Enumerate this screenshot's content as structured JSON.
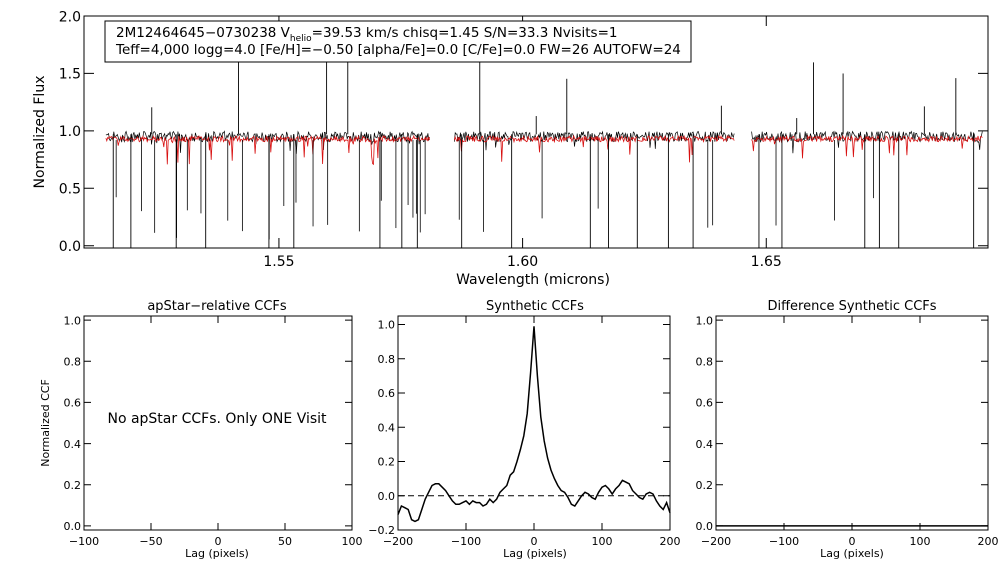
{
  "chart_data": [
    {
      "type": "line",
      "id": "spectrum",
      "ylabel": "Normalized Flux",
      "xlabel": "Wavelength (microns)",
      "xlim": [
        1.51,
        1.6955
      ],
      "ylim": [
        -0.02,
        2.0
      ],
      "x_ticks": [
        1.55,
        1.6,
        1.65
      ],
      "x_tick_labels": [
        "1.55",
        "1.60",
        "1.65"
      ],
      "y_ticks": [
        0.0,
        0.5,
        1.0,
        1.5,
        2.0
      ],
      "y_tick_labels": [
        "0.0",
        "0.5",
        "1.0",
        "1.5",
        "2.0"
      ],
      "info_line1": "2M12464645−0730238  V",
      "info_helio_sub": "helio",
      "info_line1_rest": "=39.53 km/s  chisq=1.45  S/N=33.3  Nvisits=1",
      "info_line2": "Teff=4,000 logg=4.0 [Fe/H]=−0.50 [alpha/Fe]=0.0 [C/Fe]=0.0 FW=26 AUTOFW=24",
      "series": [
        {
          "name": "observed",
          "color": "#000000",
          "level": 0.95
        },
        {
          "name": "synthetic",
          "color": "#d81010",
          "level": 0.93
        }
      ],
      "detector_chips": [
        [
          1.5145,
          1.581
        ],
        [
          1.586,
          1.6435
        ],
        [
          1.647,
          1.6945
        ]
      ],
      "absorption_lines": [
        1.5166,
        1.5218,
        1.5245,
        1.529,
        1.5312,
        1.534,
        1.5395,
        1.5425,
        1.548,
        1.551,
        1.5535,
        1.557,
        1.56,
        1.5665,
        1.571,
        1.574,
        1.5765,
        1.5775,
        1.5782,
        1.579,
        1.58,
        1.587,
        1.592,
        1.604,
        1.6155,
        1.638,
        1.639,
        1.652,
        1.664,
        1.672
      ]
    },
    {
      "type": "line",
      "id": "apstar",
      "title": "apStar−relative CCFs",
      "ylabel": "Normalized CCF",
      "xlabel": "Lag (pixels)",
      "xlim": [
        -100,
        100
      ],
      "ylim": [
        -0.02,
        1.02
      ],
      "x_ticks": [
        -100,
        -50,
        0,
        50,
        100
      ],
      "x_tick_labels": [
        "−100",
        "−50",
        "0",
        "50",
        "100"
      ],
      "y_ticks": [
        0.0,
        0.2,
        0.4,
        0.6,
        0.8,
        1.0
      ],
      "y_tick_labels": [
        "0.0",
        "0.2",
        "0.4",
        "0.6",
        "0.8",
        "1.0"
      ],
      "annotation": "No apStar CCFs.  Only ONE Visit",
      "series": []
    },
    {
      "type": "line",
      "id": "synthetic",
      "title": "Synthetic CCFs",
      "xlabel": "Lag (pixels)",
      "xlim": [
        -200,
        200
      ],
      "ylim": [
        -0.2,
        1.05
      ],
      "x_ticks": [
        -200,
        -100,
        0,
        100,
        200
      ],
      "x_tick_labels": [
        "−200",
        "−100",
        "0",
        "100",
        "200"
      ],
      "y_ticks": [
        -0.2,
        0.0,
        0.2,
        0.4,
        0.6,
        0.8,
        1.0
      ],
      "y_tick_labels": [
        "−0.2",
        "0.0",
        "0.2",
        "0.4",
        "0.6",
        "0.8",
        "1.0"
      ],
      "reference_line": 0.0,
      "series": [
        {
          "name": "CCF",
          "x": [
            -200,
            -195,
            -190,
            -185,
            -180,
            -175,
            -170,
            -165,
            -160,
            -155,
            -150,
            -145,
            -140,
            -135,
            -130,
            -125,
            -120,
            -115,
            -110,
            -105,
            -100,
            -95,
            -90,
            -85,
            -80,
            -75,
            -70,
            -65,
            -60,
            -55,
            -50,
            -45,
            -40,
            -35,
            -30,
            -25,
            -20,
            -15,
            -10,
            -5,
            0,
            5,
            10,
            15,
            20,
            25,
            30,
            35,
            40,
            45,
            50,
            55,
            60,
            65,
            70,
            75,
            80,
            85,
            90,
            95,
            100,
            105,
            110,
            115,
            120,
            125,
            130,
            135,
            140,
            145,
            150,
            155,
            160,
            165,
            170,
            175,
            180,
            185,
            190,
            195,
            200
          ],
          "y": [
            -0.11,
            -0.06,
            -0.07,
            -0.08,
            -0.14,
            -0.15,
            -0.14,
            -0.08,
            -0.02,
            0.02,
            0.06,
            0.07,
            0.07,
            0.05,
            0.03,
            0.0,
            -0.03,
            -0.05,
            -0.05,
            -0.04,
            -0.03,
            -0.05,
            -0.03,
            -0.04,
            -0.04,
            -0.06,
            -0.05,
            -0.02,
            -0.04,
            -0.02,
            0.02,
            0.04,
            0.06,
            0.12,
            0.14,
            0.2,
            0.27,
            0.35,
            0.48,
            0.72,
            0.99,
            0.7,
            0.46,
            0.32,
            0.22,
            0.15,
            0.1,
            0.06,
            0.03,
            0.02,
            -0.01,
            -0.05,
            -0.06,
            -0.03,
            0.0,
            0.02,
            0.01,
            -0.01,
            -0.02,
            0.02,
            0.05,
            0.06,
            0.04,
            0.01,
            0.04,
            0.06,
            0.09,
            0.08,
            0.07,
            0.03,
            0.01,
            -0.01,
            -0.02,
            0.01,
            0.02,
            0.01,
            -0.03,
            -0.06,
            -0.08,
            -0.04,
            -0.1
          ]
        }
      ]
    },
    {
      "type": "line",
      "id": "difference",
      "title": "Difference Synthetic CCFs",
      "xlabel": "Lag (pixels)",
      "xlim": [
        -200,
        200
      ],
      "ylim": [
        -0.02,
        1.02
      ],
      "x_ticks": [
        -200,
        -100,
        0,
        100,
        200
      ],
      "x_tick_labels": [
        "−200",
        "−100",
        "0",
        "100",
        "200"
      ],
      "y_ticks": [
        0.0,
        0.2,
        0.4,
        0.6,
        0.8,
        1.0
      ],
      "y_tick_labels": [
        "0.0",
        "0.2",
        "0.4",
        "0.6",
        "0.8",
        "1.0"
      ],
      "series": [
        {
          "name": "difference",
          "x": [
            -200,
            200
          ],
          "y": [
            0.0,
            0.0
          ]
        }
      ]
    }
  ]
}
